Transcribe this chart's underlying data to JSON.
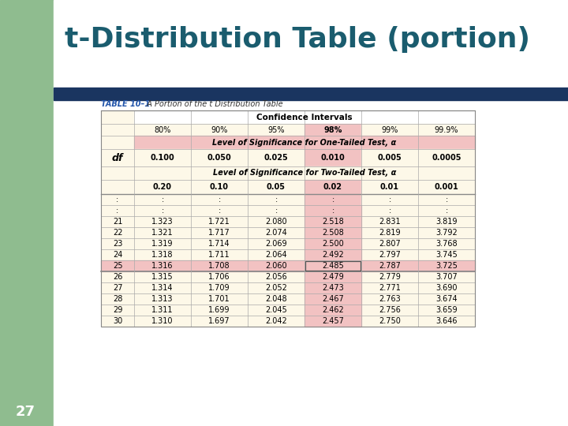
{
  "title": "t-Distribution Table (portion)",
  "title_color": "#1a5c6e",
  "title_fontsize": 26,
  "slide_bg": "#ffffff",
  "green_panel_color": "#8fbc8f",
  "blue_bar_color": "#1a3560",
  "table_caption_bold": "TABLE 10–1",
  "table_caption_normal": "  A Portion of the t Distribution Table",
  "table_bg": "#fdf8e8",
  "conf_intervals_label": "Confidence Intervals",
  "conf_percentages": [
    "80%",
    "90%",
    "95%",
    "98%",
    "99%",
    "99.9%"
  ],
  "one_tail_label": "Level of Significance for One-Tailed Test, α",
  "one_tail_values": [
    "0.100",
    "0.050",
    "0.025",
    "0.010",
    "0.005",
    "0.0005"
  ],
  "two_tail_label": "Level of Significance for Two-Tailed Test, α",
  "two_tail_values": [
    "0.20",
    "0.10",
    "0.05",
    "0.02",
    "0.01",
    "0.001"
  ],
  "df_label": "df",
  "pink_color": "#f2c2c2",
  "rows": [
    [
      ":",
      ":",
      ":",
      ":",
      ":",
      ":",
      ":"
    ],
    [
      "21",
      "1.323",
      "1.721",
      "2.080",
      "2.518",
      "2.831",
      "3.819"
    ],
    [
      "22",
      "1.321",
      "1.717",
      "2.074",
      "2.508",
      "2.819",
      "3.792"
    ],
    [
      "23",
      "1.319",
      "1.714",
      "2.069",
      "2.500",
      "2.807",
      "3.768"
    ],
    [
      "24",
      "1.318",
      "1.711",
      "2.064",
      "2.492",
      "2.797",
      "3.745"
    ],
    [
      "25",
      "1.316",
      "1.708",
      "2.060",
      "2.485",
      "2.787",
      "3.725"
    ],
    [
      "26",
      "1.315",
      "1.706",
      "2.056",
      "2.479",
      "2.779",
      "3.707"
    ],
    [
      "27",
      "1.314",
      "1.709",
      "2.052",
      "2.473",
      "2.771",
      "3.690"
    ],
    [
      "28",
      "1.313",
      "1.701",
      "2.048",
      "2.467",
      "2.763",
      "3.674"
    ],
    [
      "29",
      "1.311",
      "1.699",
      "2.045",
      "2.462",
      "2.756",
      "3.659"
    ],
    [
      "30",
      "1.310",
      "1.697",
      "2.042",
      "2.457",
      "2.750",
      "3.646"
    ]
  ],
  "page_number": "27"
}
